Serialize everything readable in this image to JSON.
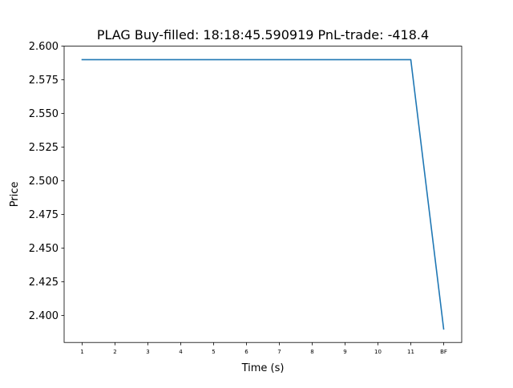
{
  "chart_data": {
    "type": "line",
    "title": "PLAG  Buy-filled:  18:18:45.590919  PnL-trade:  -418.4",
    "xlabel": "Time (s)",
    "ylabel": "Price",
    "categories": [
      "1",
      "2",
      "3",
      "4",
      "5",
      "6",
      "7",
      "8",
      "9",
      "10",
      "11",
      "BF"
    ],
    "series": [
      {
        "values": [
          2.59,
          2.59,
          2.59,
          2.59,
          2.59,
          2.59,
          2.59,
          2.59,
          2.59,
          2.59,
          2.59,
          2.39
        ],
        "color": "#1f77b4"
      }
    ],
    "ylim": [
      2.38,
      2.6
    ],
    "yticks": [
      2.4,
      2.425,
      2.45,
      2.475,
      2.5,
      2.525,
      2.55,
      2.575,
      2.6
    ],
    "ytick_labels": [
      "2.400",
      "2.425",
      "2.450",
      "2.475",
      "2.500",
      "2.525",
      "2.550",
      "2.575",
      "2.600"
    ],
    "grid": false,
    "legend": false
  }
}
